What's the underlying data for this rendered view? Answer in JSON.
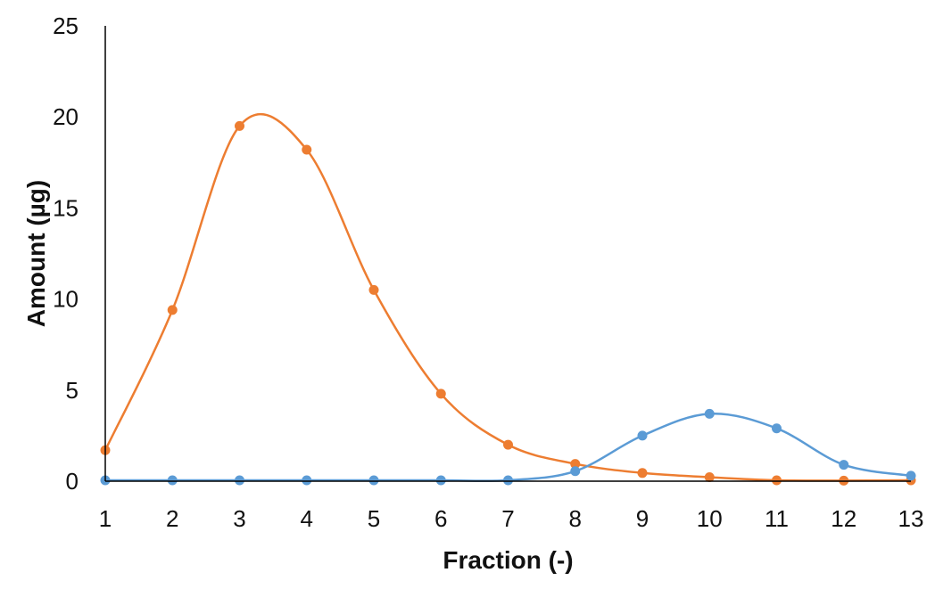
{
  "chart_data": {
    "type": "line",
    "title": "",
    "xlabel": "Fraction (-)",
    "ylabel": "Amount (µg)",
    "x": [
      1,
      2,
      3,
      4,
      5,
      6,
      7,
      8,
      9,
      10,
      11,
      12,
      13
    ],
    "xlim": [
      1,
      13
    ],
    "ylim": [
      0,
      25
    ],
    "y_ticks": [
      0,
      5,
      10,
      15,
      20,
      25
    ],
    "grid": false,
    "legend": "none",
    "smooth": true,
    "series": [
      {
        "color": "#ED7D31",
        "values": [
          1.7,
          9.4,
          19.5,
          18.2,
          10.5,
          4.8,
          2.0,
          0.95,
          0.45,
          0.22,
          0.05,
          0.03,
          0.05
        ]
      },
      {
        "color": "#5B9BD5",
        "values": [
          0.05,
          0.05,
          0.05,
          0.05,
          0.05,
          0.05,
          0.05,
          0.55,
          2.5,
          3.7,
          2.9,
          0.9,
          0.3
        ]
      }
    ]
  }
}
